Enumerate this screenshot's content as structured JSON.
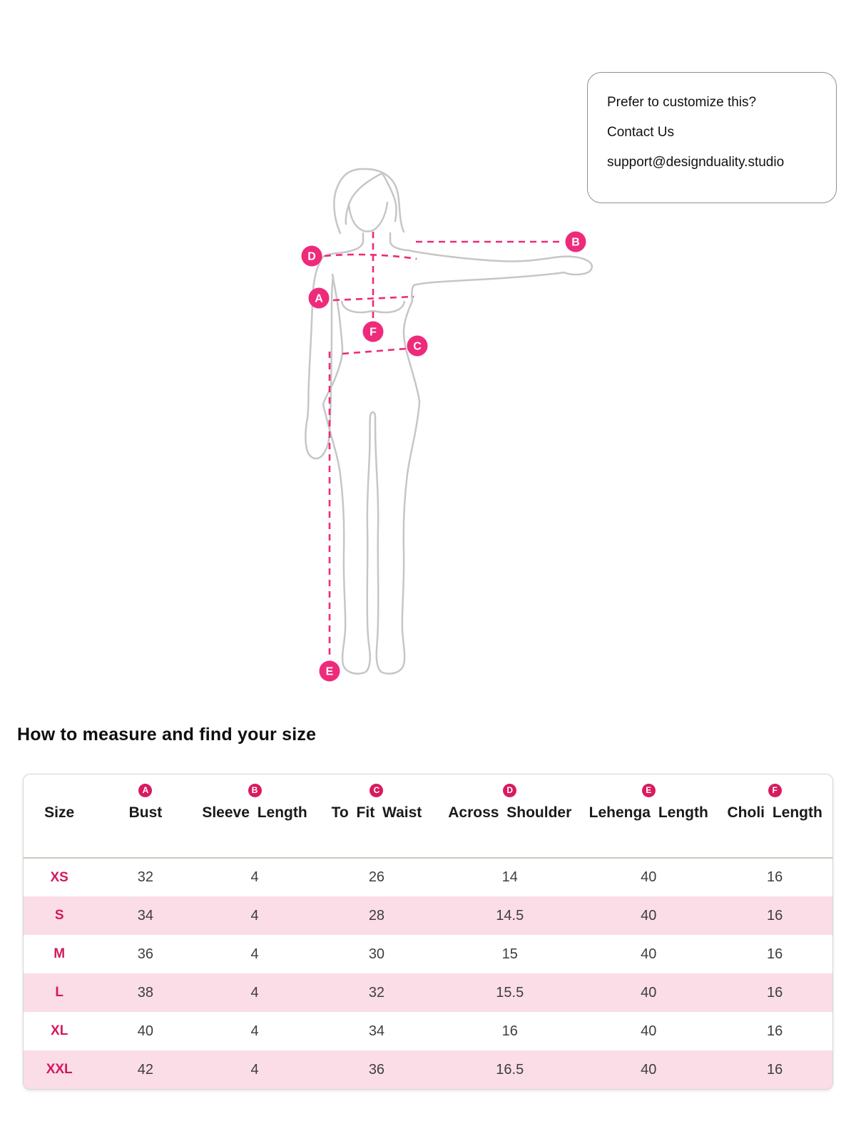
{
  "callout": {
    "line1": "Prefer to customize this?",
    "line2": "Contact Us",
    "line3": "support@designduality.studio"
  },
  "section": {
    "heading": "How to measure and find your size"
  },
  "figure": {
    "markers": [
      "A",
      "B",
      "C",
      "D",
      "E",
      "F"
    ]
  },
  "table": {
    "columns": [
      {
        "letter": "",
        "label": "Size"
      },
      {
        "letter": "A",
        "label": "Bust"
      },
      {
        "letter": "B",
        "label": "Sleeve Length"
      },
      {
        "letter": "C",
        "label": "To Fit Waist"
      },
      {
        "letter": "D",
        "label": "Across Shoulder"
      },
      {
        "letter": "E",
        "label": "Lehenga Length"
      },
      {
        "letter": "F",
        "label": "Choli Length"
      }
    ],
    "rows": [
      {
        "size": "XS",
        "values": [
          "32",
          "4",
          "26",
          "14",
          "40",
          "16"
        ]
      },
      {
        "size": "S",
        "values": [
          "34",
          "4",
          "28",
          "14.5",
          "40",
          "16"
        ]
      },
      {
        "size": "M",
        "values": [
          "36",
          "4",
          "30",
          "15",
          "40",
          "16"
        ]
      },
      {
        "size": "L",
        "values": [
          "38",
          "4",
          "32",
          "15.5",
          "40",
          "16"
        ]
      },
      {
        "size": "XL",
        "values": [
          "40",
          "4",
          "34",
          "16",
          "40",
          "16"
        ]
      },
      {
        "size": "XXL",
        "values": [
          "42",
          "4",
          "36",
          "16.5",
          "40",
          "16"
        ]
      }
    ]
  },
  "colors": {
    "figure_accent": "#ee2a7b",
    "table_accent": "#d81b5f",
    "size_label": "#d4175e",
    "row_pink": "#fadde7",
    "outline_gray": "#c6c6c6"
  }
}
